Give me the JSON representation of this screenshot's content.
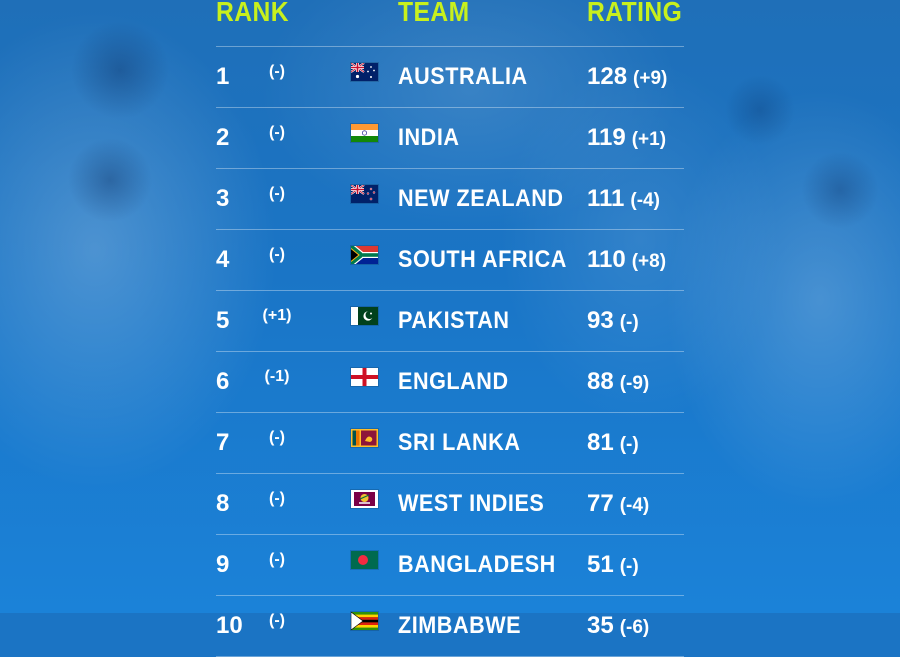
{
  "headers": {
    "rank": "RANK",
    "team": "TEAM",
    "rating": "RATING"
  },
  "colors": {
    "accent": "#c8f01d",
    "background": "#1b74c4",
    "text": "#ffffff"
  },
  "rows": [
    {
      "rank": "1",
      "change": "(-)",
      "team": "AUSTRALIA",
      "rating": "128",
      "rating_change": "(+9)",
      "flag": "flag-australia-icon"
    },
    {
      "rank": "2",
      "change": "(-)",
      "team": "INDIA",
      "rating": "119",
      "rating_change": "(+1)",
      "flag": "flag-india-icon"
    },
    {
      "rank": "3",
      "change": "(-)",
      "team": "NEW ZEALAND",
      "rating": "111",
      "rating_change": "(-4)",
      "flag": "flag-new-zealand-icon"
    },
    {
      "rank": "4",
      "change": "(-)",
      "team": "SOUTH AFRICA",
      "rating": "110",
      "rating_change": "(+8)",
      "flag": "flag-south-africa-icon"
    },
    {
      "rank": "5",
      "change": "(+1)",
      "team": "PAKISTAN",
      "rating": "93",
      "rating_change": "(-)",
      "flag": "flag-pakistan-icon"
    },
    {
      "rank": "6",
      "change": "(-1)",
      "team": "ENGLAND",
      "rating": "88",
      "rating_change": "(-9)",
      "flag": "flag-england-icon"
    },
    {
      "rank": "7",
      "change": "(-)",
      "team": "SRI LANKA",
      "rating": "81",
      "rating_change": "(-)",
      "flag": "flag-sri-lanka-icon"
    },
    {
      "rank": "8",
      "change": "(-)",
      "team": "WEST INDIES",
      "rating": "77",
      "rating_change": "(-4)",
      "flag": "flag-west-indies-icon"
    },
    {
      "rank": "9",
      "change": "(-)",
      "team": "BANGLADESH",
      "rating": "51",
      "rating_change": "(-)",
      "flag": "flag-bangladesh-icon"
    },
    {
      "rank": "10",
      "change": "(-)",
      "team": "ZIMBABWE",
      "rating": "35",
      "rating_change": "(-6)",
      "flag": "flag-zimbabwe-icon"
    }
  ]
}
